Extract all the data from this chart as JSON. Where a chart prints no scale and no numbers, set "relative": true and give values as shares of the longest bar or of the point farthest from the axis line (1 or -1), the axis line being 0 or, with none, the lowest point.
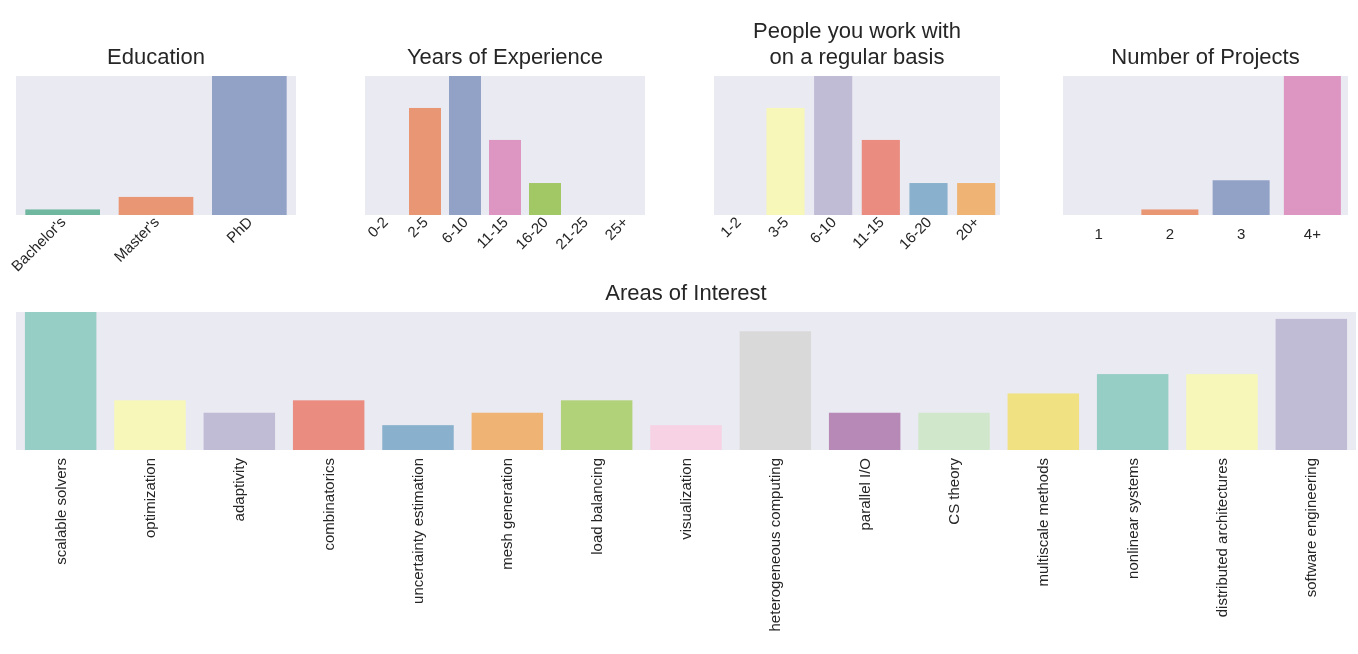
{
  "chart_data": [
    {
      "type": "bar",
      "title": "Education",
      "relative": true,
      "categories": [
        "Bachelor's",
        "Master's",
        "PhD"
      ],
      "values": [
        0.04,
        0.13,
        1
      ],
      "colors": [
        "#70b79f",
        "#e99675",
        "#92a2c6"
      ]
    },
    {
      "type": "bar",
      "title": "Years of Experience",
      "relative": true,
      "categories": [
        "0-2",
        "2-5",
        "6-10",
        "11-15",
        "16-20",
        "21-25",
        "25+"
      ],
      "values": [
        0,
        0.77,
        1,
        0.54,
        0.23,
        0,
        0
      ],
      "colors": [
        "#70b79f",
        "#e99675",
        "#92a2c6",
        "#dc96c1",
        "#a2c765",
        "#e8cf5a",
        "#dbc3a0"
      ]
    },
    {
      "type": "bar",
      "title": "People you work with\non a regular basis",
      "relative": true,
      "categories": [
        "1-2",
        "3-5",
        "6-10",
        "11-15",
        "16-20",
        "20+"
      ],
      "values": [
        0,
        0.77,
        1,
        0.54,
        0.23,
        0.23
      ],
      "colors": [
        "#96cdc4",
        "#f7f7b9",
        "#c0bcd6",
        "#eb8c80",
        "#89b0cc",
        "#efb474"
      ]
    },
    {
      "type": "bar",
      "title": "Number of Projects",
      "relative": true,
      "categories": [
        "1",
        "2",
        "3",
        "4+"
      ],
      "values": [
        0,
        0.04,
        0.25,
        1
      ],
      "colors": [
        "#70b79f",
        "#e99675",
        "#92a2c6",
        "#dc96c1"
      ]
    },
    {
      "type": "bar",
      "title": "Areas of Interest",
      "relative": true,
      "categories": [
        "scalable solvers",
        "optimization",
        "adaptivity",
        "combinatorics",
        "uncertainty estimation",
        "mesh generation",
        "load balancing",
        "visualization",
        "heterogeneous computing",
        "parallel I/O",
        "CS theory",
        "multiscale methods",
        "nonlinear systems",
        "distributed architectures",
        "software engineering"
      ],
      "values": [
        1,
        0.36,
        0.27,
        0.36,
        0.18,
        0.27,
        0.36,
        0.18,
        0.86,
        0.27,
        0.27,
        0.41,
        0.55,
        0.55,
        0.95
      ],
      "colors": [
        "#96cdc4",
        "#f7f7b9",
        "#c0bcd6",
        "#eb8c80",
        "#89b0cc",
        "#efb474",
        "#b2d27a",
        "#f6d2e4",
        "#d9d9d9",
        "#b689b7",
        "#d0e7cb",
        "#f0e283",
        "#96cdc4",
        "#f7f7b9",
        "#c0bcd6"
      ]
    }
  ]
}
